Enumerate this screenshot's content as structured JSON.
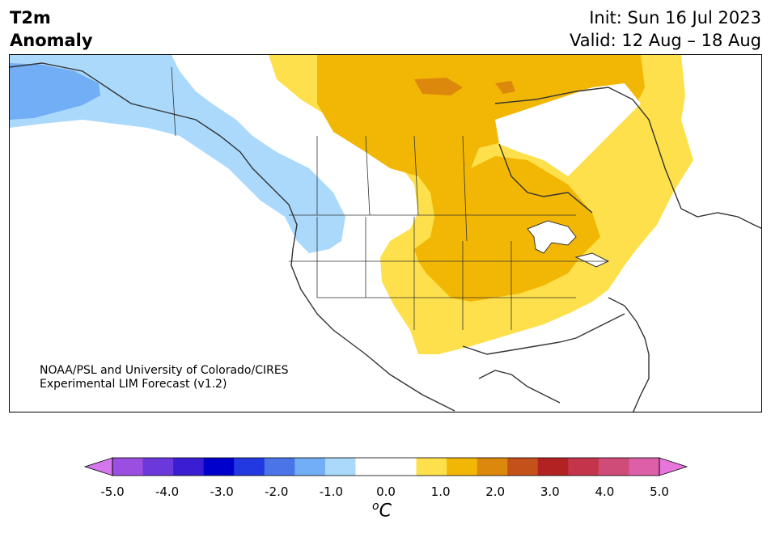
{
  "title": {
    "line1": "T2m",
    "line2": "Anomaly"
  },
  "dates": {
    "init": "Init: Sun 16 Jul 2023",
    "valid": "Valid: 12 Aug – 18 Aug"
  },
  "credit": {
    "line1": "NOAA/PSL and University of Colorado/CIRES",
    "line2": "Experimental LIM Forecast (v1.2)"
  },
  "colorbar": {
    "ticks": [
      "-5.0",
      "-4.0",
      "-3.0",
      "-2.0",
      "-1.0",
      "0.0",
      "1.0",
      "2.0",
      "3.0",
      "4.0",
      "5.0"
    ],
    "unit": "C",
    "unit_prefix": "o",
    "colors": [
      "#9b4fe0",
      "#6b38dc",
      "#3b1ed4",
      "#0000cc",
      "#2238e0",
      "#4a74e8",
      "#72aef5",
      "#aad9fb",
      "#ffffff",
      "#ffffff",
      "#fde04b",
      "#f2b705",
      "#dc880c",
      "#c4501a",
      "#b22222",
      "#c4344a",
      "#d04c78",
      "#dc5fa8"
    ],
    "min_color": "#d476ec",
    "max_color": "#e676db"
  },
  "anomaly_colors": {
    "light_blue": "#aad9fb",
    "mid_blue": "#72aef5",
    "yellow": "#fde04b",
    "gold": "#f2b705",
    "orange": "#dc880c"
  }
}
